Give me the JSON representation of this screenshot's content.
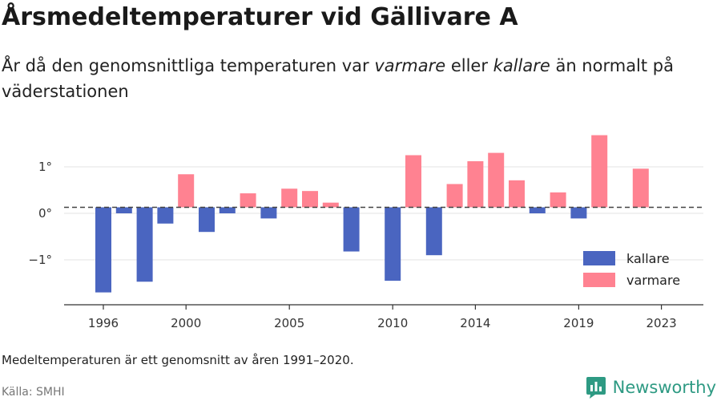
{
  "header": {
    "title": "Årsmedeltemperaturer vid Gällivare A",
    "subtitle_parts": [
      "År då den genomsnittliga temperaturen var ",
      "varmare",
      " eller ",
      "kallare",
      " än normalt på väderstationen"
    ]
  },
  "footer": {
    "note": "Medeltemperaturen är ett genomsnitt av åren 1991–2020.",
    "source": "Källa: SMHI",
    "brand": "Newsworthy"
  },
  "colors": {
    "kallare": "#4a65c0",
    "varmare": "#ff8291",
    "grid": "#e3e3e3"
  },
  "chart_data": {
    "type": "bar",
    "title": "Årsmedeltemperaturer vid Gällivare A",
    "xlabel": "",
    "ylabel": "",
    "baseline": 0.13,
    "ylim": [
      -1.95,
      1.9
    ],
    "y_ticks": [
      1,
      0,
      -1
    ],
    "y_tick_labels": [
      "1°",
      "0°",
      "−1°"
    ],
    "x_ticks": [
      1996,
      2000,
      2005,
      2010,
      2014,
      2019,
      2023
    ],
    "x_tick_labels": [
      "1996",
      "2000",
      "2005",
      "2010",
      "2014",
      "2019",
      "2023"
    ],
    "legend": [
      {
        "name": "kallare",
        "color": "#4a65c0"
      },
      {
        "name": "varmare",
        "color": "#ff8291"
      }
    ],
    "legend_position": "bottom-right",
    "years": [
      1996,
      1997,
      1998,
      1999,
      2000,
      2001,
      2002,
      2003,
      2004,
      2005,
      2006,
      2007,
      2008,
      2009,
      2010,
      2011,
      2012,
      2013,
      2014,
      2015,
      2016,
      2017,
      2018,
      2019,
      2020,
      2021,
      2022
    ],
    "values": [
      -1.7,
      0.0,
      -1.47,
      -0.22,
      0.84,
      -0.4,
      0.0,
      0.43,
      -0.11,
      0.53,
      0.48,
      0.23,
      -0.82,
      null,
      -1.45,
      1.25,
      -0.9,
      0.63,
      1.12,
      1.3,
      0.71,
      0.0,
      0.45,
      -0.11,
      1.68,
      null,
      0.96
    ]
  }
}
